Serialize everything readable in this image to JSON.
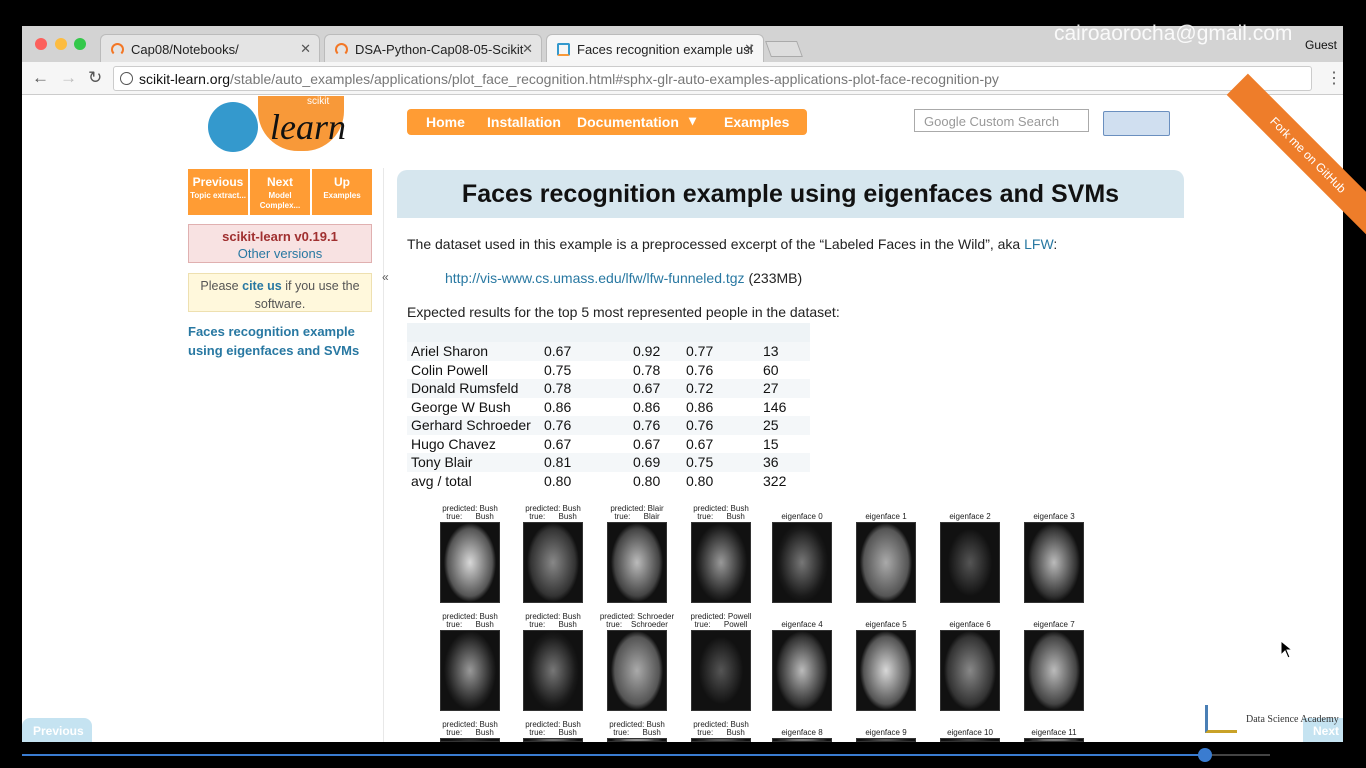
{
  "overlay": {
    "email": "cairoaorocha@gmail.com",
    "profile": "Guest"
  },
  "browser": {
    "tabs": [
      "Cap08/Notebooks/",
      "DSA-Python-Cap08-05-Scikit",
      "Faces recognition example usi"
    ],
    "url_host": "scikit-learn.org",
    "url_path": "/stable/auto_examples/applications/plot_face_recognition.html#sphx-glr-auto-examples-applications-plot-face-recognition-py"
  },
  "header": {
    "logo_small": "scikit",
    "logo_big": "learn",
    "nav": [
      "Home",
      "Installation",
      "Documentation",
      "Examples"
    ],
    "search_placeholder": "Google Custom Search",
    "ribbon": "Fork me on GitHub"
  },
  "sidebar": {
    "buttons": [
      {
        "label": "Previous",
        "sub": "Topic extract..."
      },
      {
        "label": "Next",
        "sub": "Model Complex..."
      },
      {
        "label": "Up",
        "sub": "Examples"
      }
    ],
    "version": "scikit-learn v0.19.1",
    "other_versions": "Other versions",
    "cite_pre": "Please",
    "cite_link": "cite us",
    "cite_post": "if you use the software.",
    "toc": "Faces recognition example using eigenfaces and SVMs",
    "collapse": "«"
  },
  "content": {
    "title": "Faces recognition example using eigenfaces and SVMs",
    "intro": "The dataset used in this example is a preprocessed excerpt of the “Labeled Faces in the Wild”, aka",
    "intro_link": "LFW",
    "intro_end": ":",
    "download_link": "http://vis-www.cs.umass.edu/lfw/lfw-funneled.tgz",
    "download_size": "(233MB)",
    "expected": "Expected results for the top 5 most represented people in the dataset:",
    "table": {
      "rows": [
        [
          "Ariel Sharon",
          "0.67",
          "0.92",
          "0.77",
          "13"
        ],
        [
          "Colin Powell",
          "0.75",
          "0.78",
          "0.76",
          "60"
        ],
        [
          "Donald Rumsfeld",
          "0.78",
          "0.67",
          "0.72",
          "27"
        ],
        [
          "George W Bush",
          "0.86",
          "0.86",
          "0.86",
          "146"
        ],
        [
          "Gerhard Schroeder",
          "0.76",
          "0.76",
          "0.76",
          "25"
        ],
        [
          "Hugo Chavez",
          "0.67",
          "0.67",
          "0.67",
          "15"
        ],
        [
          "Tony Blair",
          "0.81",
          "0.69",
          "0.75",
          "36"
        ],
        [
          "avg / total",
          "0.80",
          "0.80",
          "0.80",
          "322"
        ]
      ]
    },
    "gallery": {
      "predictions": [
        [
          [
            "predicted: Bush",
            "true:      Bush"
          ],
          [
            "predicted: Bush",
            "true:      Bush"
          ],
          [
            "predicted: Blair",
            "true:      Blair"
          ],
          [
            "predicted: Bush",
            "true:      Bush"
          ]
        ],
        [
          [
            "predicted: Bush",
            "true:      Bush"
          ],
          [
            "predicted: Bush",
            "true:      Bush"
          ],
          [
            "predicted: Schroeder",
            "true:    Schroeder"
          ],
          [
            "predicted: Powell",
            "true:      Powell"
          ]
        ],
        [
          [
            "predicted: Bush",
            "true:      Bush"
          ],
          [
            "predicted: Bush",
            "true:      Bush"
          ],
          [
            "predicted: Bush",
            "true:      Bush"
          ],
          [
            "predicted: Bush",
            "true:      Bush"
          ]
        ]
      ],
      "eigenfaces": [
        [
          "eigenface 0",
          "eigenface 1",
          "eigenface 2",
          "eigenface 3"
        ],
        [
          "eigenface 4",
          "eigenface 5",
          "eigenface 6",
          "eigenface 7"
        ],
        [
          "eigenface 8",
          "eigenface 9",
          "eigenface 10",
          "eigenface 11"
        ]
      ]
    }
  },
  "player": {
    "previous": "Previous",
    "next": "Next",
    "brand": "Data Science Academy"
  }
}
